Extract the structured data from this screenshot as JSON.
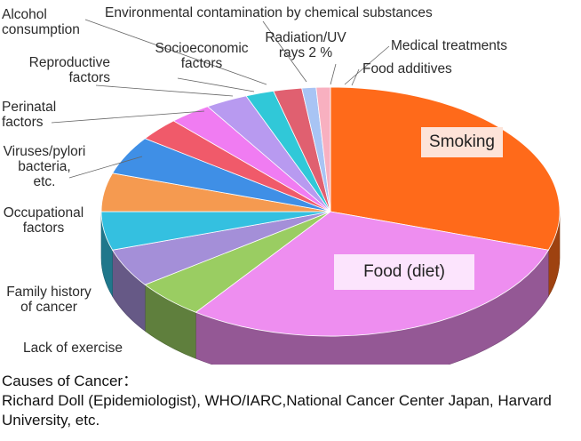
{
  "chart_data": {
    "type": "pie",
    "slices": [
      {
        "label": "Smoking",
        "value": 30,
        "color": "#ff6a1a"
      },
      {
        "label": "Food (diet)",
        "value": 30,
        "color": "#ee8ef0"
      },
      {
        "label": "Lack of exercise",
        "value": 5,
        "color": "#9acd62"
      },
      {
        "label": "Family history of cancer",
        "value": 5,
        "color": "#a48fd8"
      },
      {
        "label": "Occupational factors",
        "value": 5,
        "color": "#34c0e0"
      },
      {
        "label": "Viruses/pylori bacteria, etc.",
        "value": 5,
        "color": "#f59a50"
      },
      {
        "label": "Perinatal factors",
        "value": 5,
        "color": "#3f8fe6"
      },
      {
        "label": "Reproductive factors",
        "value": 3,
        "color": "#f05a6a"
      },
      {
        "label": "Alcohol consumption",
        "value": 3,
        "color": "#f07cf2"
      },
      {
        "label": "Socioeconomic factors",
        "value": 3,
        "color": "#b89af0"
      },
      {
        "label": "Environmental contamination by chemical substances",
        "value": 2,
        "color": "#30c8d8"
      },
      {
        "label": "Radiation/UV rays 2 %",
        "value": 2,
        "color": "#e06070"
      },
      {
        "label": "Medical treatments",
        "value": 1,
        "color": "#a8c4f4"
      },
      {
        "label": "Food additives",
        "value": 1,
        "color": "#f8b0c0"
      }
    ]
  },
  "labels": {
    "alcohol": "Alcohol\nconsumption",
    "environmental": "Environmental contamination by chemical substances",
    "reproductive": "Reproductive\nfactors",
    "socioeconomic": "Socioeconomic\nfactors",
    "radiation": "Radiation/UV\nrays 2 %",
    "medical": "Medical treatments",
    "food_additives": "Food additives",
    "perinatal": "Perinatal\nfactors",
    "viruses": "Viruses/pylori\nbacteria,\netc.",
    "occupational": "Occupational\nfactors",
    "family": "Family history\nof cancer",
    "exercise": "Lack of exercise",
    "smoking": "Smoking",
    "food_diet": "Food (diet)"
  },
  "caption": {
    "title": "Causes of Cancer：",
    "body": "Richard Doll (Epidemiologist), WHO/IARC,National Cancer Center Japan, Harvard University, etc."
  }
}
